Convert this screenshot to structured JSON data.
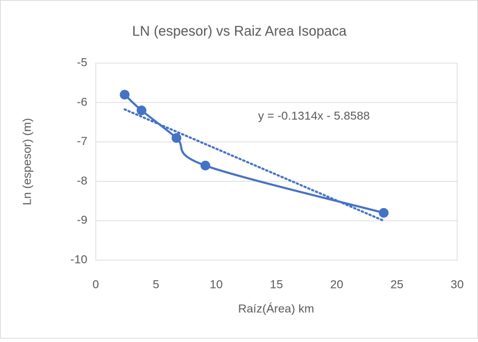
{
  "chart_data": {
    "type": "scatter",
    "title": "LN (espesor) vs Raiz Area Isopaca",
    "x_label": "Raíz(Área) km",
    "y_label": "Ln (espesor) (m)",
    "x": [
      2.4,
      3.8,
      6.7,
      9.1,
      23.9
    ],
    "values": [
      -5.8,
      -6.2,
      -6.9,
      -7.6,
      -8.8
    ],
    "color": "#4472c4",
    "line": "smooth",
    "trendline": {
      "slope": -0.1314,
      "intercept": -5.8588,
      "label": "y = -0.1314x - 5.8588"
    },
    "xlim": [
      0,
      30
    ],
    "xticks": [
      0,
      5,
      10,
      15,
      20,
      25,
      30
    ],
    "ylim": [
      -10,
      -5
    ],
    "yticks": [
      -10,
      -9,
      -8,
      -7,
      -6,
      -5
    ],
    "grid": true
  }
}
